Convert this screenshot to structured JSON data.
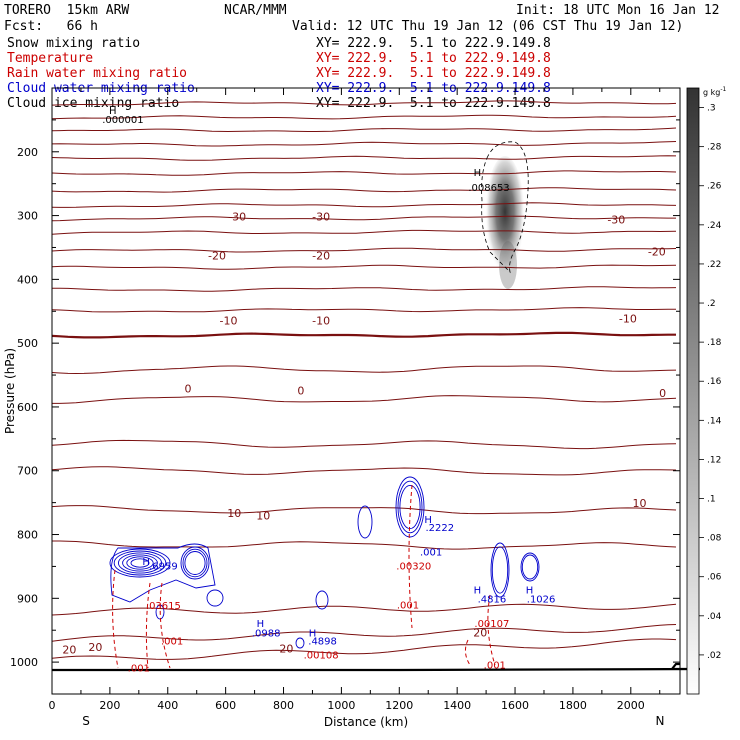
{
  "header": {
    "model": "TORERO  15km ARW",
    "center": "NCAR/MMM",
    "init": "Init: 18 UTC Mon 16 Jan 12",
    "fcst": "Fcst:   66 h",
    "valid": "Valid: 12 UTC Thu 19 Jan 12 (06 CST Thu 19 Jan 12)"
  },
  "fields": [
    {
      "name": "Snow mixing ratio",
      "xy": "XY= 222.9.  5.1 to 222.9.149.8",
      "color": "#000000"
    },
    {
      "name": "Temperature",
      "xy": "XY= 222.9.  5.1 to 222.9.149.8",
      "color": "#cc0000"
    },
    {
      "name": "Rain water mixing ratio",
      "xy": "XY= 222.9.  5.1 to 222.9.149.8",
      "color": "#cc0000"
    },
    {
      "name": "Cloud water mixing ratio",
      "xy": "XY= 222.9.  5.1 to 222.9.149.8",
      "color": "#0000cc"
    },
    {
      "name": "Cloud ice mixing ratio",
      "xy": "XY= 222.9.  5.1 to 222.9.149.8",
      "color": "#000000"
    }
  ],
  "chart_data": {
    "type": "contour",
    "xlabel": "Distance (km)",
    "ylabel": "Pressure (hPa)",
    "xlim": [
      0,
      2170
    ],
    "ylim": [
      1050,
      100
    ],
    "x_ticks": [
      "0",
      "200",
      "400",
      "600",
      "800",
      "1000",
      "1200",
      "1400",
      "1600",
      "1800",
      "2000"
    ],
    "y_ticks": [
      "200",
      "300",
      "400",
      "500",
      "600",
      "700",
      "800",
      "900",
      "1000"
    ],
    "end_labels": {
      "left": "S",
      "right": "N"
    },
    "colorbar": {
      "unit": "g kg",
      "unit_exp": "-1",
      "ticks": [
        ".3",
        ".28",
        ".26",
        ".24",
        ".22",
        ".2",
        ".18",
        ".16",
        ".14",
        ".12",
        ".1",
        ".08",
        ".06",
        ".04",
        ".02"
      ],
      "range": [
        0,
        0.31
      ]
    },
    "temperature_labels": [
      {
        "x": 640,
        "p": 303,
        "text": "-30"
      },
      {
        "x": 930,
        "p": 303,
        "text": "-30"
      },
      {
        "x": 1950,
        "p": 308,
        "text": "-30"
      },
      {
        "x": 570,
        "p": 364,
        "text": "-20"
      },
      {
        "x": 930,
        "p": 364,
        "text": "-20"
      },
      {
        "x": 2090,
        "p": 358,
        "text": "-20"
      },
      {
        "x": 610,
        "p": 466,
        "text": "-10"
      },
      {
        "x": 930,
        "p": 466,
        "text": "-10"
      },
      {
        "x": 1990,
        "p": 463,
        "text": "-10"
      },
      {
        "x": 470,
        "p": 573,
        "text": "0"
      },
      {
        "x": 860,
        "p": 576,
        "text": "0"
      },
      {
        "x": 2110,
        "p": 580,
        "text": "0"
      },
      {
        "x": 630,
        "p": 768,
        "text": "10"
      },
      {
        "x": 730,
        "p": 772,
        "text": "10"
      },
      {
        "x": 2030,
        "p": 752,
        "text": "10"
      },
      {
        "x": 60,
        "p": 982,
        "text": "20"
      },
      {
        "x": 150,
        "p": 978,
        "text": "20"
      },
      {
        "x": 810,
        "p": 980,
        "text": "20"
      },
      {
        "x": 1480,
        "p": 955,
        "text": "20"
      }
    ],
    "field_labels": [
      {
        "x": 1470,
        "p": 233,
        "text": "H",
        "color": "#000000"
      },
      {
        "x": 1510,
        "p": 257,
        "text": ".008653",
        "color": "#000000"
      },
      {
        "x": 210,
        "p": 136,
        "text": "H",
        "color": "#000000"
      },
      {
        "x": 245,
        "p": 150,
        "text": ".000001",
        "color": "#000000"
      },
      {
        "x": 1300,
        "p": 777,
        "text": "H",
        "color": "#0000cc"
      },
      {
        "x": 1340,
        "p": 790,
        "text": ".2222",
        "color": "#0000cc"
      },
      {
        "x": 1310,
        "p": 828,
        "text": ".001",
        "color": "#0000cc"
      },
      {
        "x": 1250,
        "p": 850,
        "text": ".00320",
        "color": "#cc0000"
      },
      {
        "x": 1230,
        "p": 911,
        "text": ".001",
        "color": "#cc0000"
      },
      {
        "x": 325,
        "p": 843,
        "text": "H",
        "color": "#0000cc"
      },
      {
        "x": 385,
        "p": 850,
        "text": ".6959",
        "color": "#0000cc"
      },
      {
        "x": 385,
        "p": 912,
        "text": ".03615",
        "color": "#cc0000"
      },
      {
        "x": 415,
        "p": 968,
        "text": ".001",
        "color": "#cc0000"
      },
      {
        "x": 300,
        "p": 1010,
        "text": ".001",
        "color": "#cc0000"
      },
      {
        "x": 720,
        "p": 940,
        "text": "H",
        "color": "#0000cc"
      },
      {
        "x": 740,
        "p": 955,
        "text": ".0988",
        "color": "#0000cc"
      },
      {
        "x": 900,
        "p": 955,
        "text": "H",
        "color": "#0000cc"
      },
      {
        "x": 935,
        "p": 968,
        "text": ".4898",
        "color": "#0000cc"
      },
      {
        "x": 930,
        "p": 990,
        "text": ".00108",
        "color": "#cc0000"
      },
      {
        "x": 1470,
        "p": 888,
        "text": "H",
        "color": "#0000cc"
      },
      {
        "x": 1520,
        "p": 902,
        "text": ".4816",
        "color": "#0000cc"
      },
      {
        "x": 1520,
        "p": 940,
        "text": ".00107",
        "color": "#cc0000"
      },
      {
        "x": 1650,
        "p": 888,
        "text": "H",
        "color": "#0000cc"
      },
      {
        "x": 1690,
        "p": 902,
        "text": ".1026",
        "color": "#0000cc"
      },
      {
        "x": 1530,
        "p": 1005,
        "text": ".001",
        "color": "#cc0000"
      }
    ]
  }
}
